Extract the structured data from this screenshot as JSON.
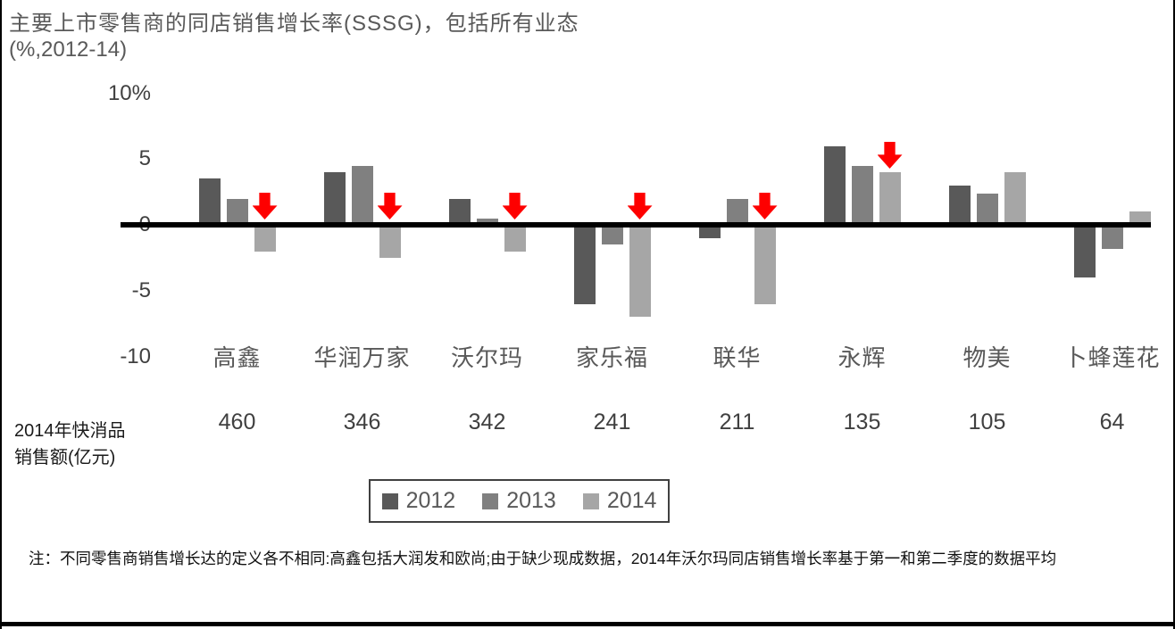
{
  "page": {
    "title_line1": "主要上市零售商的同店销售增长率(SSSG)，包括所有业态",
    "title_line2": "(%,2012-14)",
    "row_label_line1": "2014年快消品",
    "row_label_line2": "销售额(亿元)",
    "note": "注：不同零售商销售增长达的定义各不相同:高鑫包括大润发和欧尚;由于缺少现成数据，2014年沃尔玛同店销售增长率基于第一和第二季度的数据平均"
  },
  "colors": {
    "series_2012": "#595959",
    "series_2013": "#808080",
    "series_2014": "#a6a6a6",
    "arrow_red": "#fe0000",
    "axis_line": "#000000",
    "title_text": "#595959",
    "tick_text": "#404040"
  },
  "chart_data": {
    "type": "bar",
    "title": "主要上市零售商的同店销售增长率(SSSG)，包括所有业态",
    "subtitle": "(%,2012-14)",
    "ylabel": "%",
    "ylim": [
      -10,
      10
    ],
    "grid": false,
    "legend_position": "bottom",
    "yticks": [
      "10%",
      "5",
      "0",
      "-5",
      "-10"
    ],
    "ytick_values": [
      10,
      5,
      0,
      -5,
      -10
    ],
    "categories": [
      "高鑫",
      "华润万家",
      "沃尔玛",
      "家乐福",
      "联华",
      "永辉",
      "物美",
      "卜蜂莲花"
    ],
    "series": [
      {
        "name": "2012",
        "color": "#595959",
        "values": [
          3.5,
          4.0,
          2.0,
          -6.0,
          -1.0,
          6.0,
          3.0,
          -4.0
        ]
      },
      {
        "name": "2013",
        "color": "#808080",
        "values": [
          2.0,
          4.5,
          0.5,
          -1.5,
          2.0,
          4.5,
          2.4,
          -1.8
        ]
      },
      {
        "name": "2014",
        "color": "#a6a6a6",
        "values": [
          -2.0,
          -2.5,
          -2.0,
          -7.0,
          -6.0,
          4.0,
          4.0,
          1.0
        ]
      }
    ],
    "red_arrow_on_2014_bar": [
      true,
      true,
      true,
      true,
      true,
      true,
      false,
      false
    ],
    "sales_2014_row": {
      "label": "2014年快消品销售额(亿元)",
      "values": [
        "460",
        "346",
        "342",
        "241",
        "211",
        "135",
        "105",
        "64"
      ]
    },
    "legend": [
      "2012",
      "2013",
      "2014"
    ]
  }
}
